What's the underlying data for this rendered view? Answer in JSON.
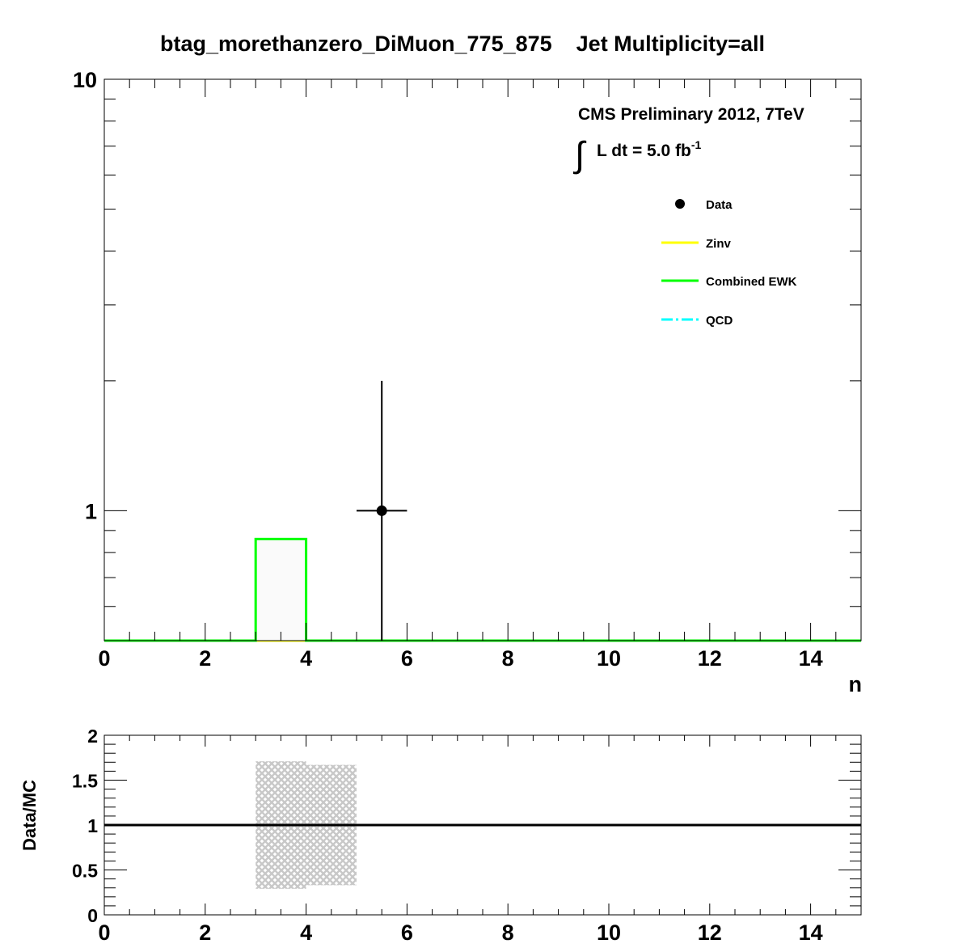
{
  "title": "btag_morethanzero_DiMuon_775_875    Jet Multiplicity=all",
  "cms_label": "CMS Preliminary 2012, 7TeV",
  "lumi_label": "L dt = 5.0 fb",
  "lumi_exponent": "-1",
  "integral_symbol": "∫",
  "colors": {
    "data": "#000000",
    "zinv": "#ffff00",
    "ewk": "#00ff00",
    "qcd": "#00ffff",
    "band": "#c8c8c8",
    "ratio_line": "#000000"
  },
  "chart_data": [
    {
      "type": "line",
      "scale": "log-y",
      "xlabel": "n",
      "ylabel": "",
      "xlim": [
        0,
        15
      ],
      "ylim": [
        0.5,
        10
      ],
      "x_ticks": [
        "0",
        "2",
        "4",
        "6",
        "8",
        "10",
        "12",
        "14"
      ],
      "y_ticks": [
        "1",
        "10"
      ],
      "legend": {
        "placement": "top-right",
        "entries": [
          {
            "label": "Data",
            "style": "marker"
          },
          {
            "label": "Zinv",
            "style": "line"
          },
          {
            "label": "Combined EWK",
            "style": "line"
          },
          {
            "label": "QCD",
            "style": "dashdot"
          }
        ]
      },
      "bin_edges": [
        0,
        1,
        2,
        3,
        4,
        5,
        6,
        7,
        8,
        9,
        10,
        11,
        12,
        13,
        14,
        15
      ],
      "series": [
        {
          "name": "Data",
          "kind": "points",
          "points": [
            {
              "x": 5.5,
              "y": 1,
              "xerr": 0.5,
              "y_low": 0.5,
              "y_high": 2.0
            }
          ]
        },
        {
          "name": "Zinv",
          "kind": "hist",
          "values": [
            0,
            0,
            0,
            0,
            0,
            0,
            0,
            0,
            0,
            0,
            0,
            0,
            0,
            0,
            0
          ]
        },
        {
          "name": "Combined EWK",
          "kind": "hist",
          "values": [
            0,
            0,
            0,
            0.86,
            0,
            0,
            0,
            0,
            0,
            0,
            0,
            0,
            0,
            0,
            0
          ]
        },
        {
          "name": "QCD",
          "kind": "hist",
          "values": [
            0,
            0,
            0,
            0,
            0,
            0,
            0,
            0,
            0,
            0,
            0,
            0,
            0,
            0,
            0
          ]
        }
      ]
    },
    {
      "type": "line",
      "xlabel": "",
      "ylabel": "Data/MC",
      "xlim": [
        0,
        15
      ],
      "ylim": [
        0,
        2
      ],
      "x_ticks": [
        "0",
        "2",
        "4",
        "6",
        "8",
        "10",
        "12",
        "14"
      ],
      "y_ticks": [
        "0",
        "0.5",
        "1",
        "1.5",
        "2"
      ],
      "reference_line": 1,
      "uncertainty_band": [
        {
          "x_low": 3,
          "x_high": 4,
          "y_low": 0.29,
          "y_high": 1.71
        },
        {
          "x_low": 4,
          "x_high": 5,
          "y_low": 0.33,
          "y_high": 1.67
        }
      ]
    }
  ]
}
